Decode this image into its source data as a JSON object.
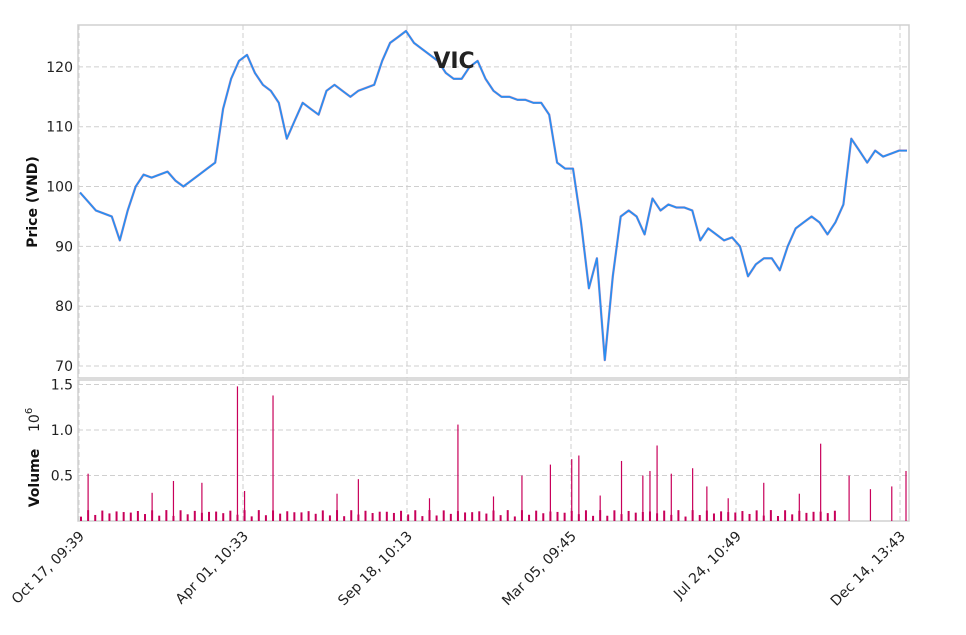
{
  "chart_data": {
    "type": "line",
    "title": "VIC",
    "price_panel": {
      "ylabel": "Price (VND)",
      "ylim": [
        68,
        127
      ],
      "yticks": [
        70,
        80,
        90,
        100,
        110,
        120
      ],
      "series": [
        {
          "color": "#2a8ff0",
          "values": [
            99,
            97.5,
            96,
            95.5,
            95,
            91,
            96,
            100,
            102,
            101.5,
            102,
            102.5,
            101,
            100,
            101,
            102,
            103,
            104,
            113,
            118,
            121,
            122,
            119,
            117,
            116,
            114,
            108,
            111,
            114,
            113,
            112,
            116,
            117,
            116,
            115,
            116,
            116.5,
            117,
            121,
            124,
            125,
            126,
            124,
            123,
            122,
            121,
            119,
            118,
            118,
            120,
            121,
            118,
            116,
            115,
            115,
            114.5,
            114.5,
            114,
            114,
            112,
            104,
            103,
            103,
            94,
            83,
            88,
            71,
            85,
            95,
            96,
            95,
            92,
            98,
            96,
            97,
            96.5,
            96.5,
            96,
            91,
            93,
            92,
            91,
            91.5,
            90,
            85,
            87,
            88,
            88,
            86,
            90,
            93,
            94,
            95,
            94,
            92,
            94,
            97,
            108,
            106,
            104,
            106,
            105,
            105.5,
            106,
            106
          ]
        }
      ]
    },
    "volume_panel": {
      "ylabel": "Volume",
      "scale_label": "10^6",
      "ylim": [
        0,
        1.55
      ],
      "yticks": [
        0.5,
        1.0,
        1.5
      ],
      "ytick_labels": [
        "0.5",
        "1.0",
        "1.5"
      ],
      "color": "#c8005a",
      "spikes": [
        {
          "i": 1,
          "v": 0.52
        },
        {
          "i": 10,
          "v": 0.31
        },
        {
          "i": 13,
          "v": 0.44
        },
        {
          "i": 17,
          "v": 0.42
        },
        {
          "i": 22,
          "v": 1.48
        },
        {
          "i": 23,
          "v": 0.33
        },
        {
          "i": 27,
          "v": 1.38
        },
        {
          "i": 36,
          "v": 0.3
        },
        {
          "i": 39,
          "v": 0.46
        },
        {
          "i": 49,
          "v": 0.25
        },
        {
          "i": 53,
          "v": 1.06
        },
        {
          "i": 58,
          "v": 0.27
        },
        {
          "i": 62,
          "v": 0.5
        },
        {
          "i": 66,
          "v": 0.62
        },
        {
          "i": 69,
          "v": 0.68
        },
        {
          "i": 70,
          "v": 0.72
        },
        {
          "i": 73,
          "v": 0.28
        },
        {
          "i": 76,
          "v": 0.66
        },
        {
          "i": 79,
          "v": 0.5
        },
        {
          "i": 80,
          "v": 0.55
        },
        {
          "i": 81,
          "v": 0.83
        },
        {
          "i": 83,
          "v": 0.52
        },
        {
          "i": 86,
          "v": 0.58
        },
        {
          "i": 88,
          "v": 0.38
        },
        {
          "i": 91,
          "v": 0.25
        },
        {
          "i": 96,
          "v": 0.42
        },
        {
          "i": 101,
          "v": 0.3
        },
        {
          "i": 104,
          "v": 0.85
        },
        {
          "i": 108,
          "v": 0.5
        },
        {
          "i": 111,
          "v": 0.35
        },
        {
          "i": 114,
          "v": 0.38
        },
        {
          "i": 116,
          "v": 0.55
        }
      ],
      "base_count": 107,
      "base_level": 0.12
    },
    "x_tick_labels": [
      "Oct 17, 09:39",
      "Apr 01, 10:33",
      "Sep 18, 10:13",
      "Mar 05, 09:45",
      "Jul 24, 10:49",
      "Dec 14, 13:43"
    ],
    "grid": true
  }
}
